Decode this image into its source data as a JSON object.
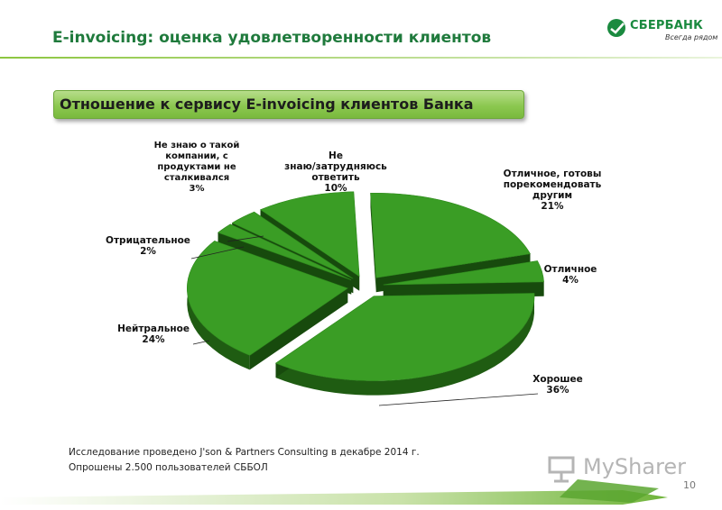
{
  "header": {
    "title": "E-invoicing: оценка удовлетворенности клиентов",
    "logo": {
      "name": "СБЕРБАНК",
      "tagline": "Всегда рядом",
      "icon": "sberbank-logo-icon",
      "color": "#1a8a3f"
    }
  },
  "banner": {
    "text": "Отношение к сервису E-invoicing клиентов Банка"
  },
  "chart_data": {
    "type": "pie",
    "style": "3d-exploded",
    "title": "",
    "slices": [
      {
        "label_lines": [
          "Отличное, готовы",
          "порекомендовать",
          "другим"
        ],
        "value": 21,
        "value_label": "21%"
      },
      {
        "label_lines": [
          "Отличное"
        ],
        "value": 4,
        "value_label": "4%"
      },
      {
        "label_lines": [
          "Хорошее"
        ],
        "value": 36,
        "value_label": "36%"
      },
      {
        "label_lines": [
          "Нейтральное"
        ],
        "value": 24,
        "value_label": "24%"
      },
      {
        "label_lines": [
          "Отрицательное"
        ],
        "value": 2,
        "value_label": "2%"
      },
      {
        "label_lines": [
          "Не знаю о такой",
          "компании, с",
          "продуктами не",
          "сталкивался"
        ],
        "value": 3,
        "value_label": "3%"
      },
      {
        "label_lines": [
          "Не",
          "знаю/затрудняюсь",
          "ответить"
        ],
        "value": 10,
        "value_label": "10%"
      }
    ],
    "colors": {
      "top": "#3a9d25",
      "side": "#1f5c12"
    }
  },
  "note": {
    "line1": "Исследование проведено J'son & Partners Consulting в декабре  2014 г.",
    "line2": "Опрошены 2.500 пользователей СББОЛ"
  },
  "watermark": {
    "text": "MySharer"
  },
  "page": {
    "number": "10"
  }
}
